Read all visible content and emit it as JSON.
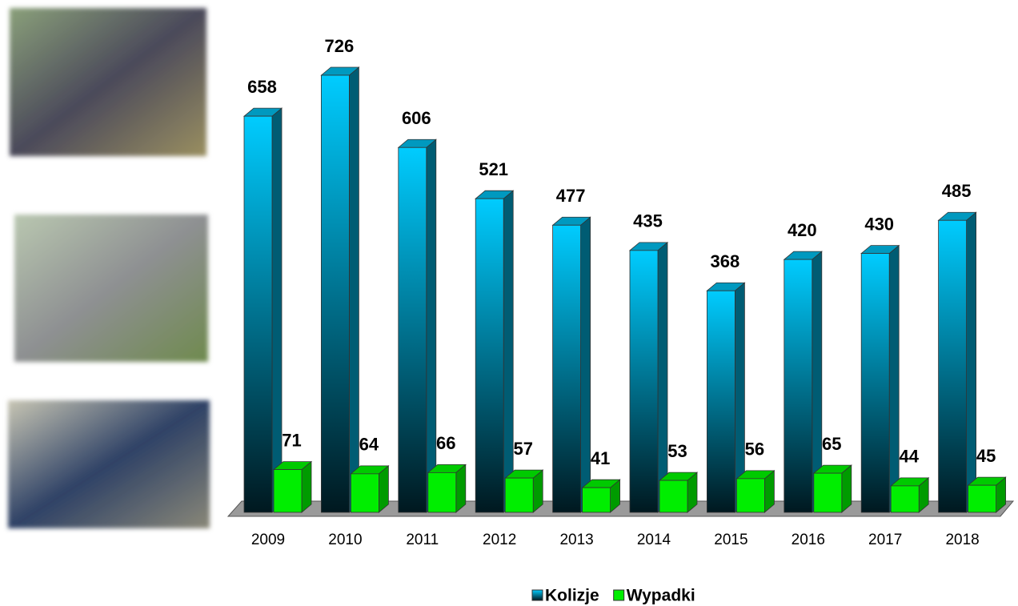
{
  "chart_data": {
    "type": "bar3d",
    "categories": [
      "2009",
      "2010",
      "2011",
      "2012",
      "2013",
      "2014",
      "2015",
      "2016",
      "2017",
      "2018"
    ],
    "series": [
      {
        "name": "Kolizje",
        "color": "#00ccff",
        "values": [
          658,
          726,
          606,
          521,
          477,
          435,
          368,
          420,
          430,
          485
        ]
      },
      {
        "name": "Wypadki",
        "color": "#00ee00",
        "values": [
          71,
          64,
          66,
          57,
          41,
          53,
          56,
          65,
          44,
          45
        ]
      }
    ],
    "legend": "bottom"
  }
}
